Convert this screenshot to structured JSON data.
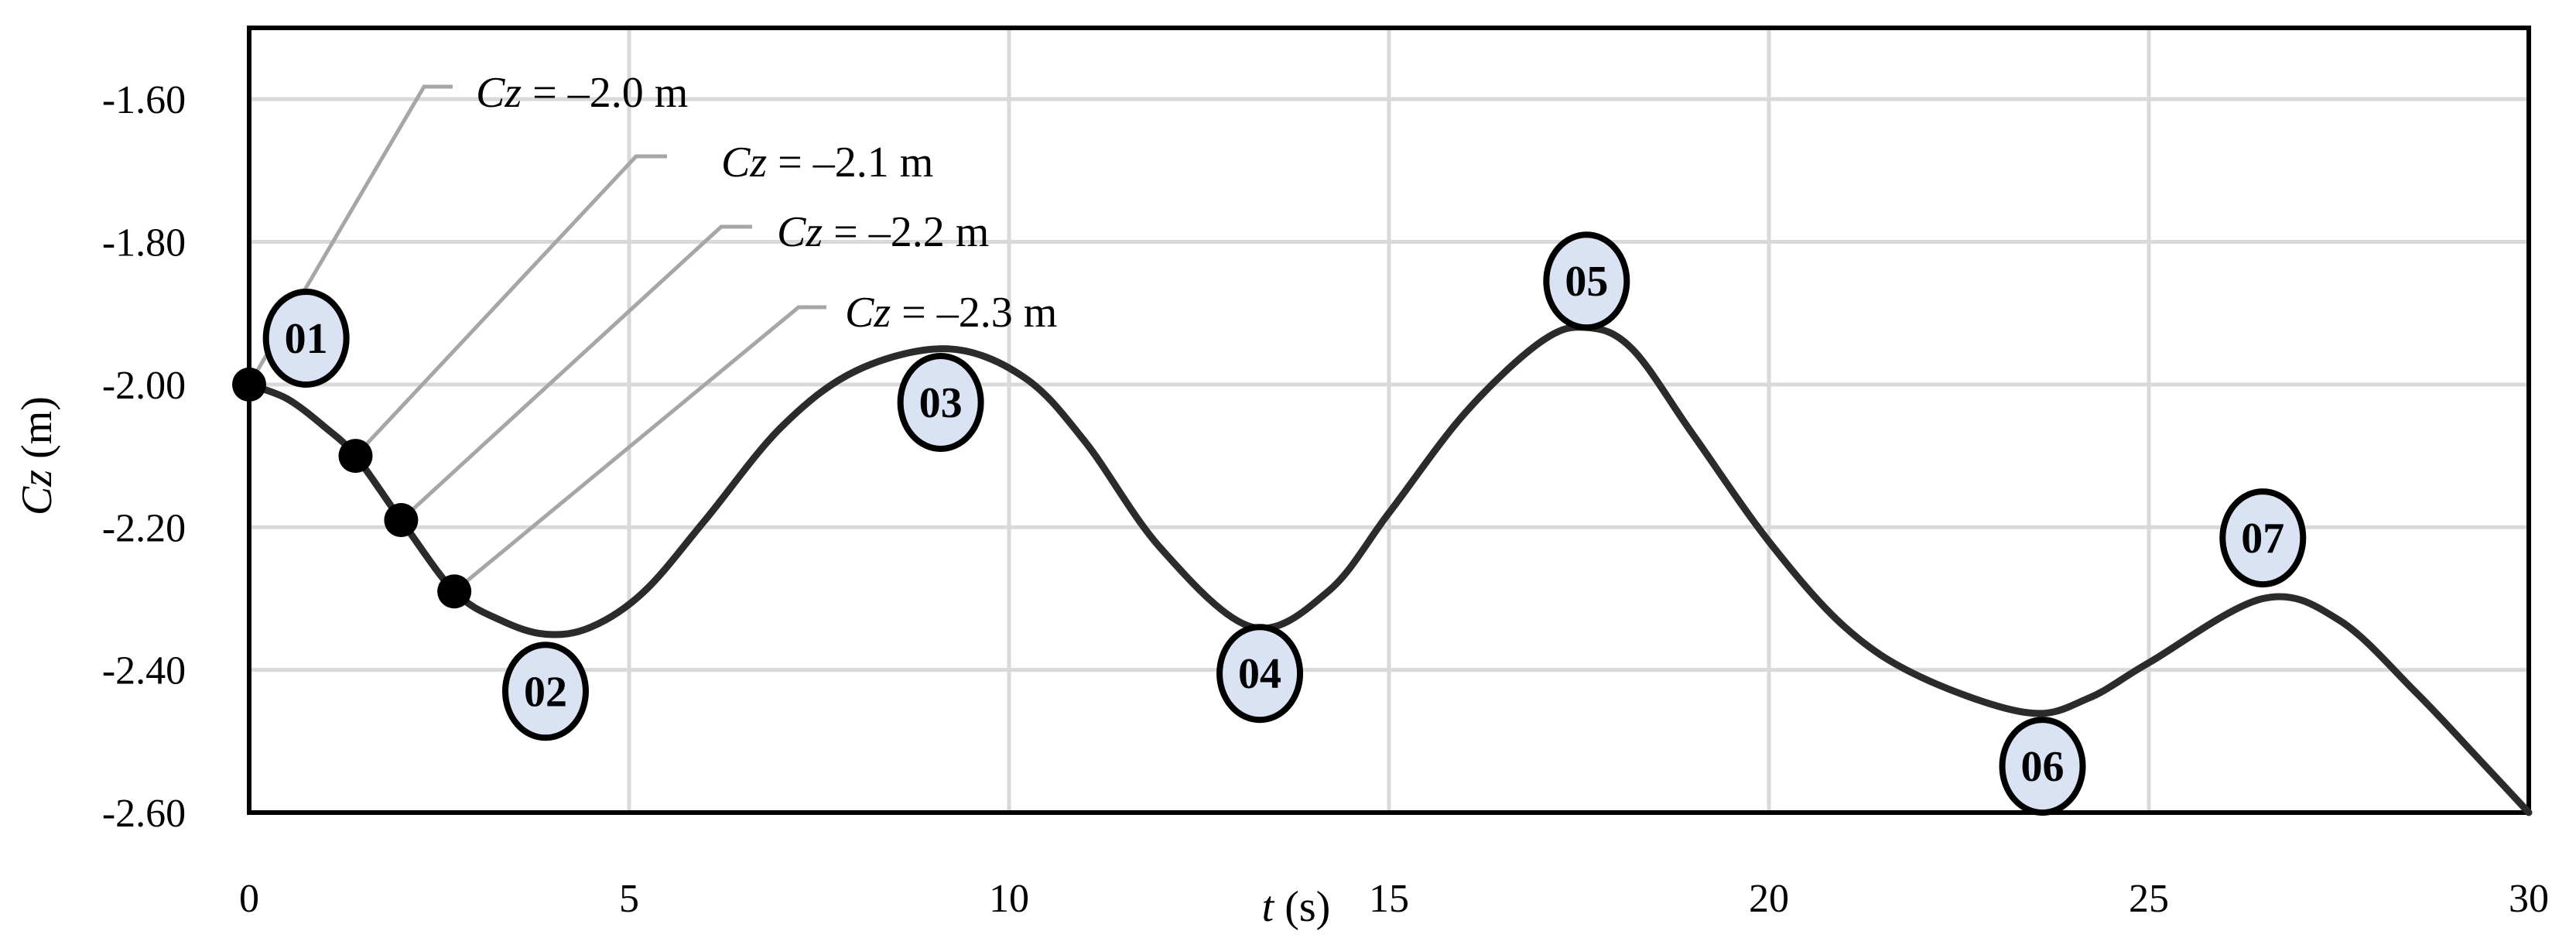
{
  "chart_data": {
    "type": "line",
    "xlabel_var": "t",
    "xlabel_unit": " (s)",
    "ylabel_var": "Cz",
    "ylabel_unit": " (m)",
    "xlim": [
      0,
      30
    ],
    "ylim": [
      -2.6,
      -1.5
    ],
    "x_ticks": [
      0,
      5,
      10,
      15,
      20,
      25,
      30
    ],
    "x_tick_labels": [
      "0",
      "5",
      "10",
      "15",
      "20",
      "25",
      "30"
    ],
    "y_ticks": [
      -1.6,
      -1.8,
      -2.0,
      -2.2,
      -2.4,
      -2.6
    ],
    "y_tick_labels": [
      "-1.60",
      "-1.80",
      "-2.00",
      "-2.20",
      "-2.40",
      "-2.60"
    ],
    "grid": true,
    "line_color": "#2b2b2b",
    "grid_color": "#d9d9d9",
    "bubble_fill": "#dae3f3",
    "leader_color": "#a6a6a6",
    "series": [
      {
        "x": [
          0,
          0.5,
          1.0,
          1.4,
          2.0,
          2.7,
          3.3,
          3.9,
          4.5,
          5.2,
          6.0,
          7.0,
          8.0,
          9.2,
          10.2,
          11.0,
          12.0,
          13.2,
          14.2,
          15.0,
          16.0,
          17.0,
          17.6,
          18.2,
          19.0,
          20.0,
          21.0,
          22.0,
          23.4,
          24.2,
          25.0,
          26.5,
          27.5,
          28.5,
          29.3,
          30.0
        ],
        "y": [
          -2.0,
          -2.02,
          -2.06,
          -2.1,
          -2.19,
          -2.29,
          -2.33,
          -2.35,
          -2.34,
          -2.29,
          -2.19,
          -2.06,
          -1.98,
          -1.95,
          -1.99,
          -2.08,
          -2.23,
          -2.34,
          -2.29,
          -2.18,
          -2.04,
          -1.94,
          -1.92,
          -1.95,
          -2.07,
          -2.22,
          -2.34,
          -2.41,
          -2.46,
          -2.44,
          -2.39,
          -2.3,
          -2.33,
          -2.43,
          -2.52,
          -2.6
        ]
      }
    ],
    "markers": [
      {
        "x": 0,
        "y": -2.0
      },
      {
        "x": 1.4,
        "y": -2.1
      },
      {
        "x": 2.0,
        "y": -2.19
      },
      {
        "x": 2.7,
        "y": -2.29
      }
    ],
    "annotations": [
      {
        "prefix": "Cz",
        "text": " = –2.0 m",
        "x": 0,
        "y": -2.0
      },
      {
        "prefix": "Cz",
        "text": " = –2.1 m",
        "x": 1.4,
        "y": -2.1
      },
      {
        "prefix": "Cz",
        "text": " = –2.2 m",
        "x": 2.0,
        "y": -2.19
      },
      {
        "prefix": "Cz",
        "text": " = –2.3 m",
        "x": 2.7,
        "y": -2.29
      }
    ],
    "bubbles": [
      {
        "label": "01",
        "x": 0.75,
        "y": -1.935
      },
      {
        "label": "02",
        "x": 3.9,
        "y": -2.43
      },
      {
        "label": "03",
        "x": 9.1,
        "y": -2.025
      },
      {
        "label": "04",
        "x": 13.3,
        "y": -2.405
      },
      {
        "label": "05",
        "x": 17.6,
        "y": -1.855
      },
      {
        "label": "06",
        "x": 23.6,
        "y": -2.535
      },
      {
        "label": "07",
        "x": 26.5,
        "y": -2.215
      }
    ]
  }
}
